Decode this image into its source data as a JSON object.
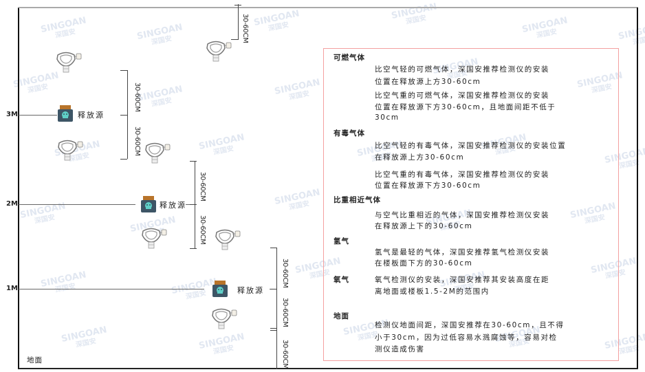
{
  "watermark": {
    "brand": "SINGOAN",
    "cn": "深国安"
  },
  "levels": {
    "m3": "3M",
    "m2": "2M",
    "m1": "1M",
    "ground": "地面"
  },
  "source_label": "释放源",
  "dimension_label": "30-60CM",
  "legend": {
    "combustible": {
      "title": "可燃气体",
      "lighter": [
        "比空气轻的可燃气体，深国安推荐检测仪的安装",
        "位置在释放源上方30-60cm"
      ],
      "heavier": [
        "比空气重的可燃气体，深国安推荐检测仪的安装",
        "位置在释放源下方30-60cm，且地面间距不低于",
        "30cm"
      ]
    },
    "toxic": {
      "title": "有毒气体",
      "lighter": [
        "比空气轻的有毒气体，深国安推荐检测仪的安装位置",
        "在释放源上方30-60cm"
      ],
      "heavier": [
        "比空气重的有毒气体，深国安推荐检测仪的安装",
        "位置在释放源下方30-60cm"
      ]
    },
    "similar": {
      "title": "比重相近气体",
      "text": [
        "与空气比重相近的气体，深国安推荐检测仪安装",
        "在释放源上下的30-60cm"
      ]
    },
    "hydrogen": {
      "title": "氢气",
      "text": [
        "氢气是最轻的气体，深国安推荐氢气检测仪安装",
        "在楼板面下方的30-60cm"
      ]
    },
    "oxygen": {
      "title": "氧气",
      "text": [
        "氧气检测仪的安装，深国安推荐其安装高度在距",
        "离地面或楼板1.5-2M的范围内"
      ]
    },
    "ground": {
      "title": "地面",
      "text": [
        "检测仪地面间距，深国安推荐在30-60cm，且不得",
        "小于30cm，因为过低容易水溅腐蚀等，容易对检",
        "测仪造成伤害"
      ]
    }
  },
  "colors": {
    "box_border": "#f4a0a0",
    "source_body": "#3d5566",
    "source_cap": "#b8742a",
    "source_face": "#5fd0c8"
  }
}
